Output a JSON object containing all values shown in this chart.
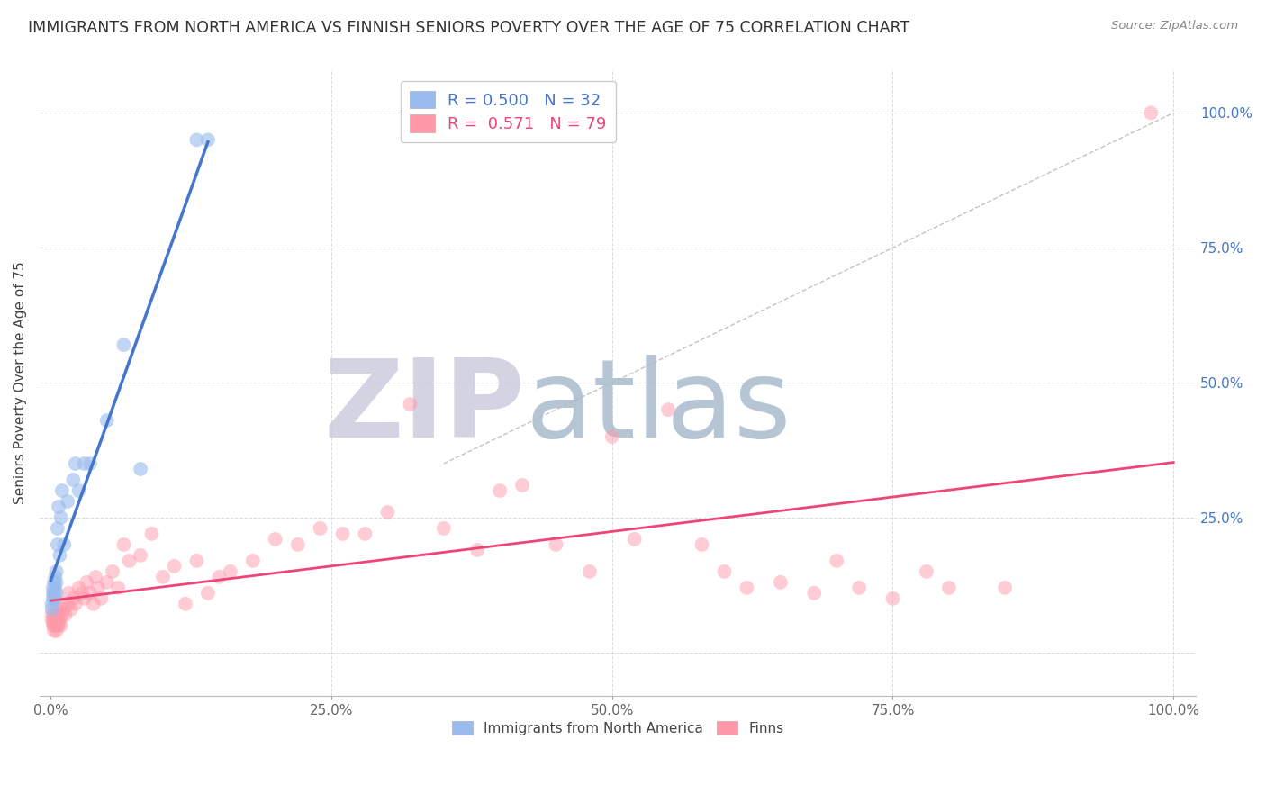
{
  "title": "IMMIGRANTS FROM NORTH AMERICA VS FINNISH SENIORS POVERTY OVER THE AGE OF 75 CORRELATION CHART",
  "source": "Source: ZipAtlas.com",
  "ylabel": "Seniors Poverty Over the Age of 75",
  "legend_label_blue": "Immigrants from North America",
  "legend_label_pink": "Finns",
  "R_blue": 0.5,
  "N_blue": 32,
  "R_pink": 0.571,
  "N_pink": 79,
  "blue_color": "#99BBEE",
  "pink_color": "#FF99AA",
  "blue_line_color": "#4477CC",
  "pink_line_color": "#EE4477",
  "grid_color": "#CCCCCC",
  "watermark_zip": "ZIP",
  "watermark_atlas": "atlas",
  "watermark_color_zip": "#CCCCDD",
  "watermark_color_atlas": "#AABBCC",
  "blue_x": [
    0.001,
    0.001,
    0.002,
    0.002,
    0.002,
    0.003,
    0.003,
    0.003,
    0.004,
    0.004,
    0.004,
    0.005,
    0.005,
    0.005,
    0.006,
    0.006,
    0.007,
    0.008,
    0.009,
    0.01,
    0.012,
    0.015,
    0.02,
    0.022,
    0.025,
    0.03,
    0.035,
    0.05,
    0.065,
    0.08,
    0.13,
    0.14
  ],
  "blue_y": [
    0.08,
    0.09,
    0.1,
    0.11,
    0.12,
    0.1,
    0.11,
    0.13,
    0.1,
    0.12,
    0.14,
    0.11,
    0.13,
    0.15,
    0.2,
    0.23,
    0.27,
    0.18,
    0.25,
    0.3,
    0.2,
    0.28,
    0.32,
    0.35,
    0.3,
    0.35,
    0.35,
    0.43,
    0.57,
    0.34,
    0.95,
    0.95
  ],
  "pink_x": [
    0.001,
    0.001,
    0.002,
    0.002,
    0.003,
    0.003,
    0.003,
    0.004,
    0.004,
    0.005,
    0.005,
    0.005,
    0.006,
    0.006,
    0.007,
    0.007,
    0.008,
    0.009,
    0.01,
    0.01,
    0.012,
    0.013,
    0.015,
    0.016,
    0.018,
    0.02,
    0.022,
    0.025,
    0.028,
    0.03,
    0.032,
    0.035,
    0.038,
    0.04,
    0.042,
    0.045,
    0.05,
    0.055,
    0.06,
    0.065,
    0.07,
    0.08,
    0.09,
    0.1,
    0.11,
    0.12,
    0.13,
    0.14,
    0.15,
    0.16,
    0.18,
    0.2,
    0.22,
    0.24,
    0.26,
    0.28,
    0.3,
    0.32,
    0.35,
    0.38,
    0.4,
    0.42,
    0.45,
    0.48,
    0.5,
    0.52,
    0.55,
    0.58,
    0.6,
    0.62,
    0.65,
    0.68,
    0.7,
    0.72,
    0.75,
    0.78,
    0.8,
    0.85,
    0.98
  ],
  "pink_y": [
    0.06,
    0.07,
    0.05,
    0.06,
    0.04,
    0.05,
    0.07,
    0.05,
    0.06,
    0.04,
    0.06,
    0.08,
    0.05,
    0.06,
    0.05,
    0.07,
    0.06,
    0.05,
    0.07,
    0.09,
    0.08,
    0.07,
    0.09,
    0.11,
    0.08,
    0.1,
    0.09,
    0.12,
    0.11,
    0.1,
    0.13,
    0.11,
    0.09,
    0.14,
    0.12,
    0.1,
    0.13,
    0.15,
    0.12,
    0.2,
    0.17,
    0.18,
    0.22,
    0.14,
    0.16,
    0.09,
    0.17,
    0.11,
    0.14,
    0.15,
    0.17,
    0.21,
    0.2,
    0.23,
    0.22,
    0.22,
    0.26,
    0.46,
    0.23,
    0.19,
    0.3,
    0.31,
    0.2,
    0.15,
    0.4,
    0.21,
    0.45,
    0.2,
    0.15,
    0.12,
    0.13,
    0.11,
    0.17,
    0.12,
    0.1,
    0.15,
    0.12,
    0.12,
    1.0
  ]
}
